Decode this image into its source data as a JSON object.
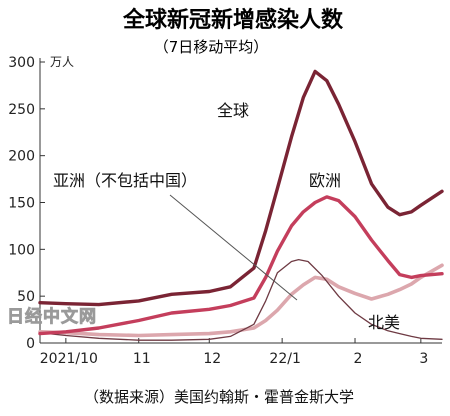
{
  "title": "全球新冠新增感染人数",
  "subtitle": "（7日移动平均）",
  "source": "（数据来源）美国约翰斯・霍普金斯大学",
  "watermark": "日经中文网",
  "chart_data": {
    "type": "line",
    "ylabel": "万人",
    "ylim": [
      0,
      300
    ],
    "yticks": [
      0,
      50,
      100,
      150,
      200,
      250,
      300
    ],
    "grid": false,
    "x_start": "2021-09-20",
    "x_end": "2022-03-10",
    "xticks": [
      {
        "date": "2021-10-01",
        "label": "2021/10"
      },
      {
        "date": "2021-11-01",
        "label": "11"
      },
      {
        "date": "2021-12-01",
        "label": "12"
      },
      {
        "date": "2022-01-01",
        "label": "22/1"
      },
      {
        "date": "2022-02-01",
        "label": "2"
      },
      {
        "date": "2022-03-01",
        "label": "3"
      }
    ],
    "series": [
      {
        "name": "全球",
        "color": "#7a2434",
        "points": [
          [
            "2021-09-20",
            43
          ],
          [
            "2021-10-01",
            42
          ],
          [
            "2021-10-15",
            41
          ],
          [
            "2021-11-01",
            45
          ],
          [
            "2021-11-15",
            52
          ],
          [
            "2021-12-01",
            55
          ],
          [
            "2021-12-10",
            60
          ],
          [
            "2021-12-20",
            80
          ],
          [
            "2021-12-25",
            120
          ],
          [
            "2021-12-30",
            165
          ],
          [
            "2022-01-05",
            220
          ],
          [
            "2022-01-10",
            262
          ],
          [
            "2022-01-15",
            290
          ],
          [
            "2022-01-20",
            280
          ],
          [
            "2022-01-25",
            255
          ],
          [
            "2022-02-01",
            215
          ],
          [
            "2022-02-08",
            170
          ],
          [
            "2022-02-15",
            145
          ],
          [
            "2022-02-20",
            137
          ],
          [
            "2022-02-25",
            140
          ],
          [
            "2022-03-01",
            147
          ],
          [
            "2022-03-10",
            162
          ]
        ]
      },
      {
        "name": "欧洲",
        "color": "#c43e5c",
        "points": [
          [
            "2021-09-20",
            10
          ],
          [
            "2021-10-01",
            12
          ],
          [
            "2021-10-15",
            16
          ],
          [
            "2021-11-01",
            24
          ],
          [
            "2021-11-15",
            32
          ],
          [
            "2021-12-01",
            36
          ],
          [
            "2021-12-10",
            40
          ],
          [
            "2021-12-20",
            48
          ],
          [
            "2021-12-25",
            70
          ],
          [
            "2021-12-30",
            98
          ],
          [
            "2022-01-05",
            125
          ],
          [
            "2022-01-10",
            140
          ],
          [
            "2022-01-15",
            150
          ],
          [
            "2022-01-20",
            156
          ],
          [
            "2022-01-25",
            152
          ],
          [
            "2022-02-01",
            135
          ],
          [
            "2022-02-08",
            110
          ],
          [
            "2022-02-15",
            88
          ],
          [
            "2022-02-20",
            73
          ],
          [
            "2022-02-25",
            70
          ],
          [
            "2022-03-01",
            72
          ],
          [
            "2022-03-10",
            74
          ]
        ]
      },
      {
        "name": "北美",
        "color": "#dca7ad",
        "points": [
          [
            "2021-09-20",
            12
          ],
          [
            "2021-10-01",
            11
          ],
          [
            "2021-10-15",
            9
          ],
          [
            "2021-11-01",
            8
          ],
          [
            "2021-11-15",
            9
          ],
          [
            "2021-12-01",
            10
          ],
          [
            "2021-12-10",
            12
          ],
          [
            "2021-12-20",
            16
          ],
          [
            "2021-12-25",
            24
          ],
          [
            "2021-12-30",
            35
          ],
          [
            "2022-01-05",
            52
          ],
          [
            "2022-01-10",
            62
          ],
          [
            "2022-01-15",
            70
          ],
          [
            "2022-01-20",
            68
          ],
          [
            "2022-01-25",
            60
          ],
          [
            "2022-02-01",
            53
          ],
          [
            "2022-02-08",
            47
          ],
          [
            "2022-02-15",
            52
          ],
          [
            "2022-02-20",
            57
          ],
          [
            "2022-02-25",
            63
          ],
          [
            "2022-03-01",
            70
          ],
          [
            "2022-03-10",
            83
          ]
        ]
      },
      {
        "name": "亚洲（不包括中国）",
        "color": "#6e3a43",
        "points": [
          [
            "2021-09-20",
            11
          ],
          [
            "2021-10-01",
            8
          ],
          [
            "2021-10-15",
            5
          ],
          [
            "2021-11-01",
            3
          ],
          [
            "2021-11-15",
            3
          ],
          [
            "2021-12-01",
            4
          ],
          [
            "2021-12-10",
            7
          ],
          [
            "2021-12-20",
            20
          ],
          [
            "2021-12-25",
            45
          ],
          [
            "2021-12-30",
            75
          ],
          [
            "2022-01-05",
            87
          ],
          [
            "2022-01-08",
            89
          ],
          [
            "2022-01-12",
            87
          ],
          [
            "2022-01-18",
            72
          ],
          [
            "2022-01-25",
            50
          ],
          [
            "2022-02-01",
            32
          ],
          [
            "2022-02-08",
            20
          ],
          [
            "2022-02-15",
            13
          ],
          [
            "2022-02-20",
            10
          ],
          [
            "2022-02-25",
            7
          ],
          [
            "2022-03-01",
            5
          ],
          [
            "2022-03-10",
            4
          ]
        ]
      }
    ]
  }
}
